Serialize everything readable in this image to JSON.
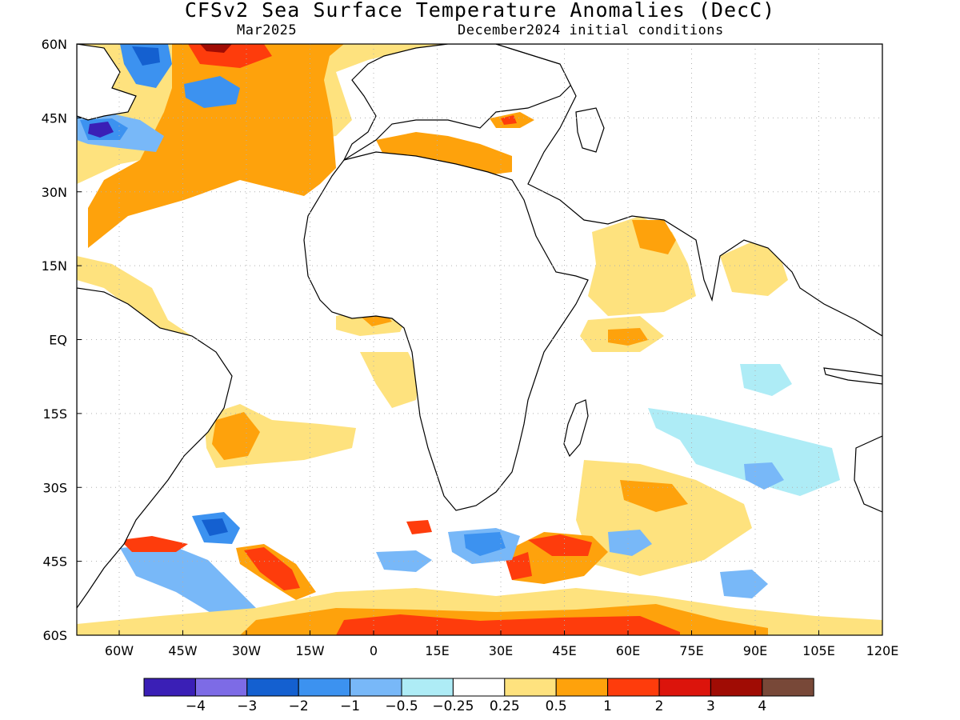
{
  "title": "CFSv2 Sea Surface Temperature Anomalies (DecC)",
  "valid_month": "Mar2025",
  "init_conditions": "December2024 initial conditions",
  "map": {
    "lon_range": [
      -70,
      120
    ],
    "lat_range": [
      -60,
      60
    ],
    "x_ticks": [
      "60W",
      "45W",
      "30W",
      "15W",
      "0",
      "15E",
      "30E",
      "45E",
      "60E",
      "75E",
      "90E",
      "105E",
      "120E"
    ],
    "y_ticks": [
      "60N",
      "45N",
      "30N",
      "15N",
      "EQ",
      "15S",
      "30S",
      "45S",
      "60S"
    ],
    "grid": "dotted"
  },
  "colorbar": {
    "colors": [
      "#3a1fb6",
      "#7d6be6",
      "#1460d0",
      "#3c92f0",
      "#78b8f8",
      "#aeecf6",
      "#ffffff",
      "#fee27e",
      "#fea20c",
      "#fe3c0c",
      "#dc140c",
      "#a00c04",
      "#784838"
    ],
    "labels": [
      "−4",
      "−3",
      "−2",
      "−1",
      "−0.5",
      "−0.25",
      "0.25",
      "0.5",
      "1",
      "2",
      "3",
      "4"
    ]
  },
  "anomaly_regions": [
    {
      "name": "north-atlantic-warm",
      "level": "1",
      "color": "#fea20c"
    },
    {
      "name": "labrador-cold",
      "level": "-4",
      "color": "#3a1fb6"
    },
    {
      "name": "southern-ocean-warm",
      "level": "1",
      "color": "#fea20c"
    },
    {
      "name": "south-atlantic-cold",
      "level": "-2",
      "color": "#1460d0"
    },
    {
      "name": "south-indian-cold",
      "level": "-1",
      "color": "#78b8f8"
    }
  ]
}
